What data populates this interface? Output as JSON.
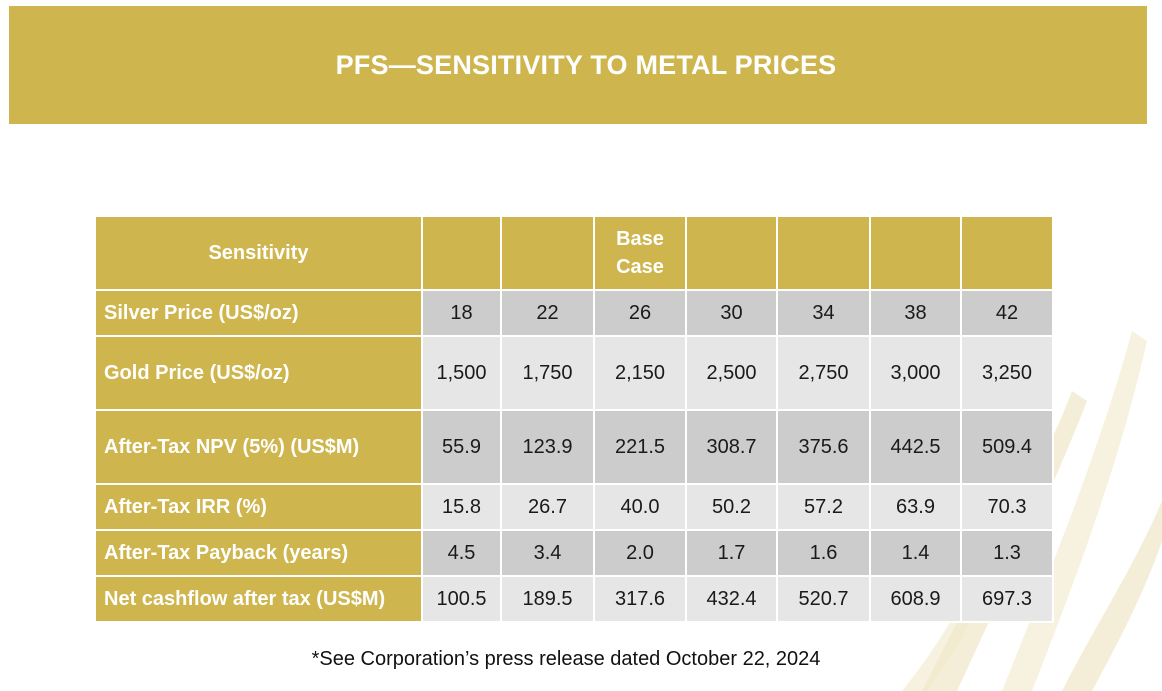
{
  "title": "PFS—SENSITIVITY TO METAL PRICES",
  "table": {
    "header_label": "Sensitivity",
    "base_case_label": "Base\nCase",
    "rows": [
      {
        "label": "Silver Price (US$/oz)",
        "values": [
          "18",
          "22",
          "26",
          "30",
          "34",
          "38",
          "42"
        ]
      },
      {
        "label": "Gold Price (US$/oz)",
        "values": [
          "1,500",
          "1,750",
          "2,150",
          "2,500",
          "2,750",
          "3,000",
          "3,250"
        ]
      },
      {
        "label": "After-Tax NPV (5%) (US$M)",
        "values": [
          "55.9",
          "123.9",
          "221.5",
          "308.7",
          "375.6",
          "442.5",
          "509.4"
        ]
      },
      {
        "label": "After-Tax IRR (%)",
        "values": [
          "15.8",
          "26.7",
          "40.0",
          "50.2",
          "57.2",
          "63.9",
          "70.3"
        ]
      },
      {
        "label": "After-Tax Payback (years)",
        "values": [
          "4.5",
          "3.4",
          "2.0",
          "1.7",
          "1.6",
          "1.4",
          "1.3"
        ]
      },
      {
        "label": "Net cashflow after tax (US$M)",
        "values": [
          "100.5",
          "189.5",
          "317.6",
          "432.4",
          "520.7",
          "608.9",
          "697.3"
        ]
      }
    ]
  },
  "footnote": "*See Corporation’s press release dated October 22, 2024",
  "colors": {
    "gold": "#cfb54e",
    "cell_dark": "#cccccc",
    "cell_light": "#e6e6e6"
  }
}
